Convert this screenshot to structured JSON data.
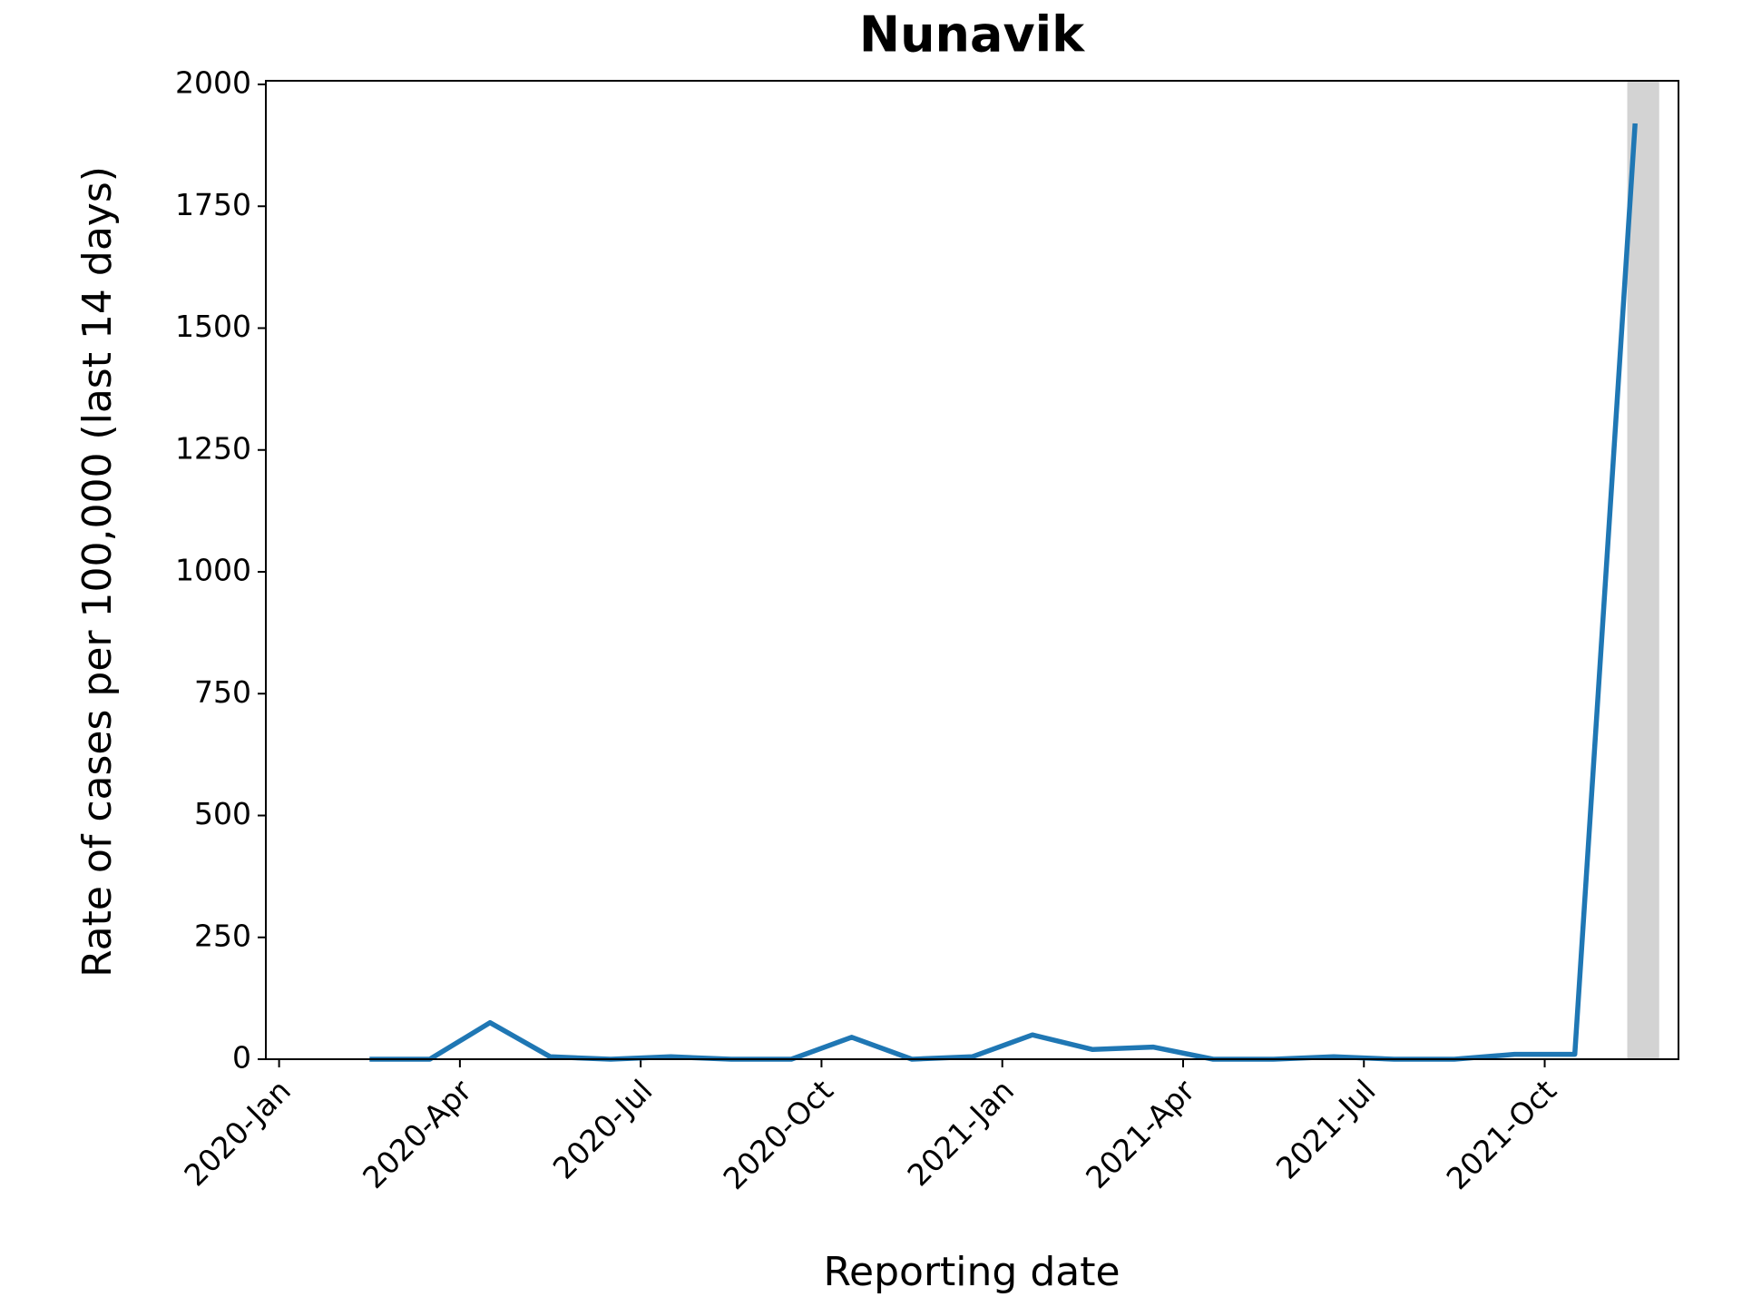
{
  "chart_data": {
    "type": "line",
    "title": "Nunavik",
    "x_label": "Reporting date",
    "y_label": "Rate of cases per 100,000 (last 14 days)",
    "x": [
      "2020-02",
      "2020-03",
      "2020-04",
      "2020-05",
      "2020-06",
      "2020-07",
      "2020-08",
      "2020-09",
      "2020-10",
      "2020-11",
      "2020-12",
      "2021-01",
      "2021-02",
      "2021-03",
      "2021-04",
      "2021-05",
      "2021-06",
      "2021-07",
      "2021-08",
      "2021-09",
      "2021-10",
      "2021-11"
    ],
    "series": [
      {
        "name": "Nunavik",
        "color": "#1f77b4",
        "values": [
          0,
          0,
          75,
          5,
          0,
          5,
          0,
          0,
          45,
          0,
          5,
          50,
          20,
          25,
          0,
          0,
          5,
          0,
          0,
          10,
          10,
          1920
        ]
      }
    ],
    "highlight": "2021-11",
    "highlight_color": "#d3d3d3",
    "xlim": [
      "2020-01",
      "2021-12"
    ],
    "xticks": [
      {
        "value": "2020-01",
        "label": "2020-Jan"
      },
      {
        "value": "2020-04",
        "label": "2020-Apr"
      },
      {
        "value": "2020-07",
        "label": "2020-Jul"
      },
      {
        "value": "2020-10",
        "label": "2020-Oct"
      },
      {
        "value": "2021-01",
        "label": "2021-Jan"
      },
      {
        "value": "2021-04",
        "label": "2021-Apr"
      },
      {
        "value": "2021-07",
        "label": "2021-Jul"
      },
      {
        "value": "2021-10",
        "label": "2021-Oct"
      }
    ],
    "ylim": [
      0,
      2000
    ],
    "yticks": [
      0,
      250,
      500,
      750,
      1000,
      1250,
      1500,
      1750,
      2000
    ],
    "grid": false
  }
}
